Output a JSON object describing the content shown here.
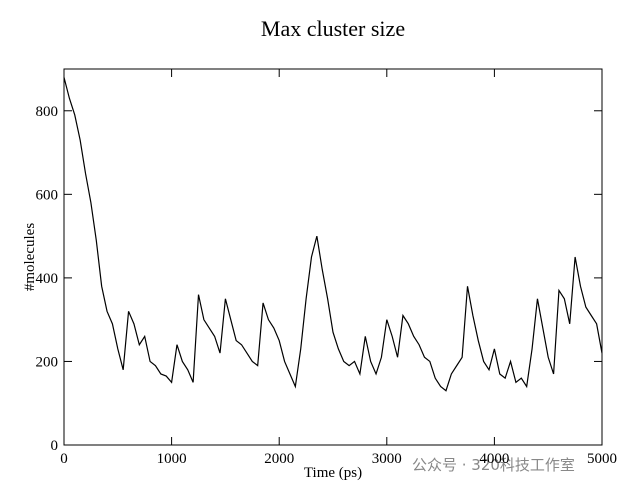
{
  "chart_data": {
    "type": "line",
    "title": "Max cluster size",
    "x_label": "Time (ps)",
    "y_label": "#molecules",
    "watermark": "公众号 · 320科技工作室",
    "xlim": [
      0,
      5000
    ],
    "xticks": [
      0,
      1000,
      2000,
      3000,
      4000,
      5000
    ],
    "ylim": [
      0,
      900
    ],
    "yticks": [
      0,
      200,
      400,
      600,
      800
    ],
    "x": [
      0,
      50,
      100,
      150,
      200,
      250,
      300,
      350,
      400,
      450,
      500,
      550,
      600,
      650,
      700,
      750,
      800,
      850,
      900,
      950,
      1000,
      1050,
      1100,
      1150,
      1200,
      1250,
      1300,
      1350,
      1400,
      1450,
      1500,
      1550,
      1600,
      1650,
      1700,
      1750,
      1800,
      1850,
      1900,
      1950,
      2000,
      2050,
      2100,
      2150,
      2200,
      2250,
      2300,
      2350,
      2400,
      2450,
      2500,
      2550,
      2600,
      2650,
      2700,
      2750,
      2800,
      2850,
      2900,
      2950,
      3000,
      3050,
      3100,
      3150,
      3200,
      3250,
      3300,
      3350,
      3400,
      3450,
      3500,
      3550,
      3600,
      3650,
      3700,
      3750,
      3800,
      3850,
      3900,
      3950,
      4000,
      4050,
      4100,
      4150,
      4200,
      4250,
      4300,
      4350,
      4400,
      4450,
      4500,
      4550,
      4600,
      4650,
      4700,
      4750,
      4800,
      4850,
      4900,
      4950,
      5000
    ],
    "series": [
      {
        "name": "Max cluster size",
        "color": "#000000",
        "values": [
          880,
          830,
          790,
          730,
          650,
          580,
          490,
          380,
          320,
          290,
          230,
          180,
          320,
          290,
          240,
          260,
          200,
          190,
          170,
          165,
          150,
          240,
          200,
          180,
          150,
          360,
          300,
          280,
          260,
          220,
          350,
          300,
          250,
          240,
          220,
          200,
          190,
          340,
          300,
          280,
          250,
          200,
          170,
          140,
          230,
          350,
          450,
          500,
          420,
          350,
          270,
          230,
          200,
          190,
          200,
          170,
          260,
          200,
          170,
          210,
          300,
          260,
          210,
          310,
          290,
          260,
          240,
          210,
          200,
          160,
          140,
          130,
          170,
          190,
          210,
          380,
          310,
          250,
          200,
          180,
          230,
          170,
          160,
          200,
          150,
          160,
          140,
          230,
          350,
          280,
          210,
          170,
          370,
          350,
          290,
          450,
          380,
          330,
          310,
          290,
          220
        ]
      }
    ]
  }
}
